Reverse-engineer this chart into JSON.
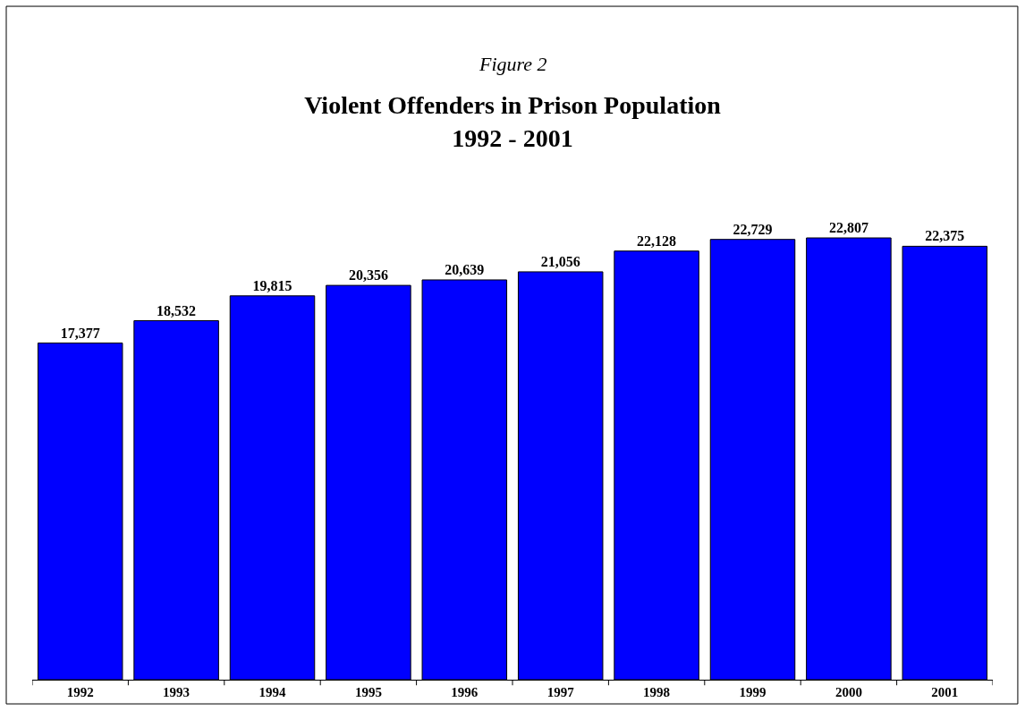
{
  "chart_data": {
    "type": "bar",
    "subtitle": "Figure 2",
    "title": "Violent Offenders in Prison Population\n1992 - 2001",
    "categories": [
      "1992",
      "1993",
      "1994",
      "1995",
      "1996",
      "1997",
      "1998",
      "1999",
      "2000",
      "2001"
    ],
    "values": [
      17377,
      18532,
      19815,
      20356,
      20639,
      21056,
      22128,
      22729,
      22807,
      22375
    ],
    "value_labels": [
      "17,377",
      "18,532",
      "19,815",
      "20,356",
      "20,639",
      "21,056",
      "22,128",
      "22,729",
      "22,807",
      "22,375"
    ],
    "color": "#0000ff",
    "tick_labels": "x",
    "grid": false
  }
}
